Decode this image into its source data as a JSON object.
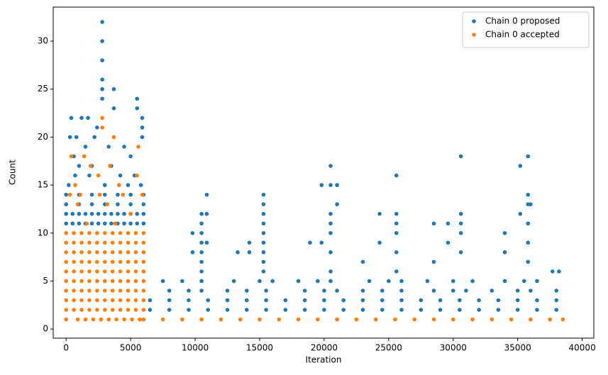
{
  "chart_data": {
    "type": "scatter",
    "xlabel": "Iteration",
    "ylabel": "Count",
    "xlim": [
      -1000,
      40900
    ],
    "ylim": [
      -0.95,
      33.55
    ],
    "xticks": [
      0,
      5000,
      10000,
      15000,
      20000,
      25000,
      30000,
      35000,
      40000
    ],
    "yticks": [
      0,
      5,
      10,
      15,
      20,
      25,
      30
    ],
    "grid": false,
    "legend": "upper right",
    "series": [
      {
        "name": "Chain 0 proposed",
        "color": "#1f77b4",
        "x": [
          0,
          500,
          1000,
          1500,
          2000,
          2500,
          3000,
          3500,
          4000,
          4500,
          5000,
          5500,
          6000,
          0,
          500,
          1000,
          1500,
          2000,
          2500,
          3000,
          3500,
          4000,
          4500,
          5000,
          5500,
          6000,
          0,
          1000,
          2000,
          3000,
          4000,
          5000,
          6000,
          0,
          1000,
          2000,
          3000,
          4000,
          5000,
          6000,
          400,
          1200,
          1700,
          2400,
          2800,
          2800,
          2800,
          2800,
          2800,
          2800,
          3700,
          3700,
          5500,
          5500,
          5900,
          5900,
          5900,
          300,
          800,
          1500,
          2200,
          3300,
          4500,
          5000,
          600,
          1000,
          2000,
          3500,
          4200,
          700,
          1800,
          5300,
          5800,
          200,
          3000,
          4800,
          6500,
          8000,
          9500,
          11000,
          12500,
          14000,
          15500,
          17000,
          18500,
          20000,
          21500,
          23000,
          24500,
          26000,
          27500,
          29000,
          30500,
          32000,
          33500,
          35000,
          36500,
          38000,
          6500,
          8000,
          9500,
          11000,
          12500,
          14000,
          15500,
          17000,
          18500,
          20000,
          21500,
          23000,
          24500,
          26000,
          27500,
          29000,
          30500,
          32000,
          33500,
          35000,
          36500,
          38000,
          8000,
          9500,
          10500,
          12500,
          14000,
          15500,
          18500,
          20000,
          21000,
          23000,
          24500,
          26000,
          28500,
          30000,
          31000,
          33000,
          35000,
          36000,
          38000,
          7500,
          9000,
          10500,
          13000,
          15000,
          16000,
          18000,
          19500,
          20500,
          23500,
          25000,
          26000,
          28000,
          30000,
          31500,
          34000,
          35500,
          36500,
          10500,
          10500,
          10500,
          10500,
          10500,
          10500,
          10500,
          10900,
          10900,
          10900,
          9800,
          9800,
          15300,
          15300,
          15300,
          15300,
          15300,
          15300,
          15300,
          15300,
          15300,
          14200,
          14200,
          13300,
          20500,
          20500,
          20500,
          20500,
          20500,
          20500,
          20500,
          19800,
          19800,
          21000,
          21000,
          18900,
          25600,
          25600,
          25600,
          25600,
          25600,
          25600,
          24300,
          24300,
          23000,
          30600,
          30600,
          30600,
          30600,
          30600,
          29600,
          29600,
          28500,
          28500,
          35800,
          35800,
          35800,
          35800,
          35800,
          35800,
          35200,
          35200,
          34000,
          34000,
          36000,
          37700,
          38200
        ],
        "values": [
          12,
          12,
          12,
          12,
          12,
          12,
          12,
          12,
          12,
          12,
          12,
          12,
          12,
          11,
          11,
          11,
          11,
          11,
          11,
          11,
          11,
          11,
          11,
          11,
          11,
          11,
          13,
          13,
          13,
          13,
          13,
          13,
          13,
          14,
          14,
          14,
          14,
          14,
          14,
          14,
          22,
          22,
          22,
          21,
          32,
          30,
          28,
          26,
          25,
          24,
          25,
          23,
          24,
          23,
          22,
          21,
          20,
          20,
          20,
          19,
          20,
          19,
          19,
          18,
          18,
          17,
          17,
          17,
          16,
          16,
          16,
          16,
          15,
          15,
          15,
          15,
          2,
          2,
          2,
          2,
          2,
          2,
          2,
          2,
          2,
          2,
          2,
          2,
          2,
          2,
          2,
          2,
          2,
          2,
          2,
          2,
          2,
          2,
          3,
          3,
          3,
          3,
          3,
          3,
          3,
          3,
          3,
          3,
          3,
          3,
          3,
          3,
          3,
          3,
          3,
          3,
          3,
          3,
          3,
          3,
          4,
          4,
          4,
          4,
          4,
          4,
          4,
          4,
          4,
          4,
          4,
          4,
          4,
          4,
          4,
          4,
          4,
          4,
          4,
          5,
          5,
          5,
          5,
          5,
          5,
          5,
          5,
          5,
          5,
          5,
          5,
          5,
          5,
          5,
          5,
          5,
          5,
          6,
          7,
          8,
          9,
          10,
          11,
          12,
          14,
          12,
          9,
          10,
          8,
          6,
          7,
          8,
          9,
          10,
          11,
          12,
          13,
          14,
          8,
          9,
          8,
          6,
          8,
          10,
          11,
          12,
          15,
          17,
          15,
          9,
          15,
          13,
          9,
          6,
          8,
          10,
          11,
          12,
          16,
          12,
          9,
          7,
          8,
          10,
          11,
          12,
          18,
          11,
          9,
          11,
          7,
          7,
          9,
          11,
          13,
          14,
          18,
          17,
          12,
          10,
          8,
          13,
          6,
          6
        ]
      },
      {
        "name": "Chain 0 accepted",
        "color": "#ff7f0e",
        "x": [
          0,
          600,
          1200,
          1800,
          2400,
          3000,
          3600,
          4200,
          4800,
          5400,
          6000,
          0,
          600,
          1200,
          1800,
          2400,
          3000,
          3600,
          4200,
          4800,
          5400,
          6000,
          0,
          600,
          1200,
          1800,
          2400,
          3000,
          3600,
          4200,
          4800,
          5400,
          6000,
          0,
          600,
          1200,
          1800,
          2400,
          3000,
          3600,
          4200,
          4800,
          5400,
          6000,
          0,
          600,
          1200,
          1800,
          2400,
          3000,
          3600,
          4200,
          4800,
          5400,
          6000,
          0,
          600,
          1200,
          1800,
          2400,
          3000,
          3600,
          4200,
          4800,
          5400,
          6000,
          0,
          600,
          1200,
          1800,
          2400,
          3000,
          3600,
          4200,
          4800,
          5400,
          6000,
          0,
          600,
          1200,
          1800,
          2400,
          3000,
          3600,
          4200,
          4800,
          5400,
          6000,
          0,
          600,
          1200,
          1800,
          2400,
          3000,
          3600,
          4200,
          4800,
          5400,
          6000,
          0,
          900,
          1500,
          2100,
          2700,
          3300,
          3900,
          4500,
          5100,
          5700,
          2800,
          2800,
          3700,
          5600,
          1400,
          400,
          1900,
          3400,
          2500,
          5500,
          700,
          4100,
          300,
          1100,
          2600,
          4400,
          5900,
          900,
          3200,
          5000,
          1600,
          3800,
          6000,
          7500,
          9000,
          10500,
          12000,
          13500,
          15000,
          16500,
          18000,
          19500,
          21000,
          22500,
          24000,
          25500,
          27000,
          28500,
          30000,
          31500,
          33000,
          34500,
          36000,
          37500,
          38500
        ],
        "values": [
          2,
          2,
          2,
          2,
          2,
          2,
          2,
          2,
          2,
          2,
          2,
          3,
          3,
          3,
          3,
          3,
          3,
          3,
          3,
          3,
          3,
          3,
          4,
          4,
          4,
          4,
          4,
          4,
          4,
          4,
          4,
          4,
          4,
          5,
          5,
          5,
          5,
          5,
          5,
          5,
          5,
          5,
          5,
          5,
          6,
          6,
          6,
          6,
          6,
          6,
          6,
          6,
          6,
          6,
          6,
          7,
          7,
          7,
          7,
          7,
          7,
          7,
          7,
          7,
          7,
          7,
          8,
          8,
          8,
          8,
          8,
          8,
          8,
          8,
          8,
          8,
          8,
          9,
          9,
          9,
          9,
          9,
          9,
          9,
          9,
          9,
          9,
          9,
          10,
          10,
          10,
          10,
          10,
          10,
          10,
          10,
          10,
          10,
          10,
          1,
          1,
          1,
          1,
          1,
          1,
          1,
          1,
          1,
          1,
          22,
          21,
          20,
          19,
          18,
          18,
          17,
          17,
          16,
          16,
          15,
          15,
          14,
          14,
          14,
          14,
          14,
          13,
          13,
          12,
          11,
          11,
          1,
          1,
          1,
          1,
          1,
          1,
          1,
          1,
          1,
          1,
          1,
          1,
          1,
          1,
          1,
          1,
          1,
          1,
          1,
          1,
          1,
          1,
          1
        ]
      }
    ]
  }
}
